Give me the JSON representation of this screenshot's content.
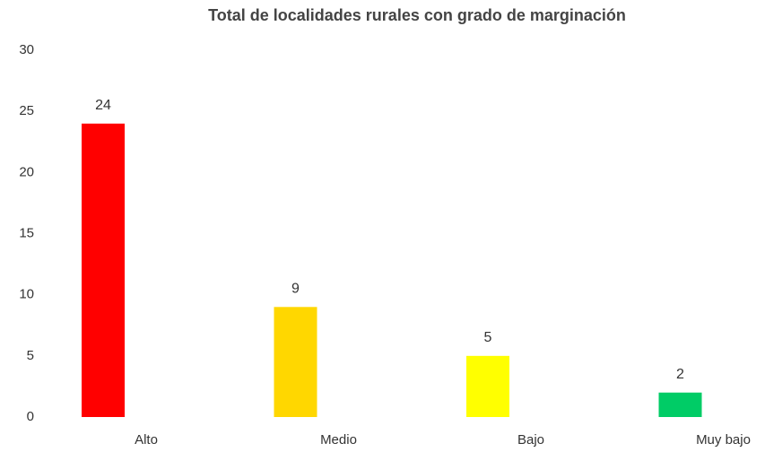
{
  "chart_data": {
    "type": "bar",
    "title": "Total de localidades rurales con grado de marginación",
    "categories": [
      "Alto",
      "Medio",
      "Bajo",
      "Muy bajo"
    ],
    "values": [
      24,
      9,
      5,
      2
    ],
    "colors": [
      "#ff0000",
      "#ffd700",
      "#ffff00",
      "#00cc66"
    ],
    "ylim": [
      0,
      30
    ],
    "yticks": [
      0,
      5,
      10,
      15,
      20,
      25,
      30
    ],
    "grid": false
  }
}
